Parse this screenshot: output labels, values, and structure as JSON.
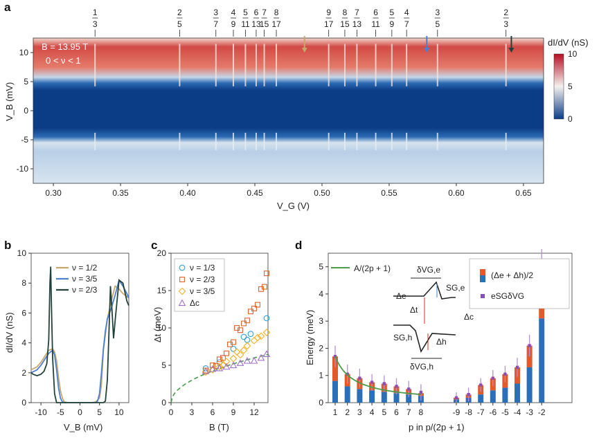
{
  "figure": {
    "panels": [
      "a",
      "b",
      "c",
      "d"
    ],
    "colors": {
      "red": "#b40f20",
      "mid": "#f4f1ee",
      "blue": "#0b3d86",
      "green": "#4a9b4a",
      "gold": "#c8a86a",
      "lightblue": "#4d7fd0",
      "darkgreen": "#22413a",
      "orange": "#e0602a",
      "teal": "#2ca0d8",
      "purple": "#8a4fb0",
      "barblue": "#2a6fb8",
      "barred": "#e25a2a"
    }
  },
  "chart_data": [
    {
      "panel": "a",
      "type": "heatmap",
      "xlabel": "V_G (V)",
      "ylabel": "V_B (mV)",
      "x_ticks": [
        "0.30",
        "0.35",
        "0.40",
        "0.45",
        "0.50",
        "0.55",
        "0.60",
        "0.65"
      ],
      "x_tick_values": [
        0.3,
        0.35,
        0.4,
        0.45,
        0.5,
        0.55,
        0.6,
        0.65
      ],
      "y_ticks": [
        "10",
        "5",
        "0",
        "-5",
        "-10"
      ],
      "y_tick_values": [
        10,
        5,
        0,
        -5,
        -10
      ],
      "xlim": [
        0.285,
        0.665
      ],
      "ylim": [
        -12.5,
        12.5
      ],
      "annotation_field": "B = 13.95 T",
      "annotation_filling": "0 < ν < 1",
      "colorbar": {
        "label": "dI/dV (nS)",
        "ticks": [
          "10",
          "5",
          "0"
        ],
        "tick_values": [
          10,
          5,
          0
        ],
        "range": [
          0,
          10
        ]
      },
      "fractions": [
        {
          "num": "1",
          "den": "3",
          "vg": 0.331
        },
        {
          "num": "2",
          "den": "5",
          "vg": 0.394
        },
        {
          "num": "3",
          "den": "7",
          "vg": 0.421
        },
        {
          "num": "4",
          "den": "9",
          "vg": 0.434
        },
        {
          "num": "5",
          "den": "11",
          "vg": 0.443
        },
        {
          "num": "6",
          "den": "13",
          "vg": 0.451
        },
        {
          "num": "7",
          "den": "15",
          "vg": 0.457
        },
        {
          "num": "8",
          "den": "17",
          "vg": 0.466
        },
        {
          "num": "9",
          "den": "17",
          "vg": 0.505
        },
        {
          "num": "8",
          "den": "15",
          "vg": 0.517
        },
        {
          "num": "7",
          "den": "13",
          "vg": 0.526
        },
        {
          "num": "6",
          "den": "11",
          "vg": 0.54
        },
        {
          "num": "5",
          "den": "9",
          "vg": 0.552
        },
        {
          "num": "4",
          "den": "7",
          "vg": 0.563
        },
        {
          "num": "3",
          "den": "5",
          "vg": 0.586
        },
        {
          "num": "2",
          "den": "3",
          "vg": 0.637
        }
      ],
      "marker_arrows": [
        {
          "color": "#c8a86a",
          "vg": 0.487
        },
        {
          "color": "#4d7fd0",
          "vg": 0.578
        },
        {
          "color": "#22413a",
          "vg": 0.641
        }
      ]
    },
    {
      "panel": "b",
      "type": "line",
      "xlabel": "V_B (mV)",
      "ylabel": "dI/dV (nS)",
      "xlim": [
        -12.5,
        12.5
      ],
      "ylim": [
        0,
        10
      ],
      "x_ticks": [
        "-10",
        "-5",
        "0",
        "5",
        "10"
      ],
      "x_tick_values": [
        -10,
        -5,
        0,
        5,
        10
      ],
      "y_ticks": [
        "0",
        "2",
        "4",
        "6",
        "8",
        "10"
      ],
      "y_tick_values": [
        0,
        2,
        4,
        6,
        8,
        10
      ],
      "series": [
        {
          "name": "ν = 1/2",
          "color": "#c8a86a",
          "x": [
            -12.5,
            -11,
            -10,
            -9,
            -8,
            -7,
            -6.5,
            -6,
            -5.5,
            -5,
            -4.5,
            -4,
            -3,
            -2,
            0,
            2,
            3,
            4,
            5,
            5.5,
            6,
            7,
            8,
            9,
            10,
            11,
            12,
            12.5
          ],
          "y": [
            2.2,
            2.4,
            2.7,
            3.1,
            3.5,
            3.6,
            3.4,
            2.8,
            1.7,
            0.8,
            0.3,
            0.05,
            0,
            0,
            0,
            0,
            0,
            0.05,
            0.3,
            1.2,
            3.5,
            5.6,
            6.8,
            7.8,
            7.6,
            7.3,
            7.1,
            7.0
          ]
        },
        {
          "name": "ν = 3/5",
          "color": "#4d7fd0",
          "x": [
            -12.5,
            -11,
            -10,
            -9,
            -8,
            -7,
            -6.5,
            -6,
            -5.5,
            -5,
            -4.5,
            -4,
            -3,
            0,
            3,
            4,
            4.5,
            5,
            5.5,
            6,
            6.5,
            7,
            8,
            9,
            10,
            11,
            12,
            12.5
          ],
          "y": [
            2.0,
            2.2,
            2.5,
            2.9,
            3.3,
            3.5,
            3.2,
            2.2,
            1.0,
            0.3,
            0.05,
            0,
            0,
            0,
            0,
            0,
            0.1,
            0.6,
            2.0,
            3.6,
            4.8,
            5.6,
            6.3,
            7.2,
            8.2,
            7.8,
            7.3,
            7.0
          ]
        },
        {
          "name": "ν = 2/3",
          "color": "#22413a",
          "x": [
            -12.5,
            -12,
            -11,
            -10,
            -9.2,
            -8.5,
            -8,
            -7.7,
            -7.5,
            -7.3,
            -7,
            -6.5,
            -6,
            -5,
            -4,
            0,
            5,
            6,
            6.5,
            7,
            7.4,
            7.8,
            8.2,
            8.6,
            9,
            10,
            11,
            12,
            12.5
          ],
          "y": [
            2.0,
            1.9,
            1.8,
            1.9,
            2.1,
            2.6,
            4.2,
            8.0,
            9.1,
            6.5,
            3.0,
            0.6,
            0,
            0,
            0,
            0,
            0,
            0,
            0.1,
            1.5,
            4.5,
            7.8,
            6.2,
            4.3,
            5.5,
            8.2,
            8.0,
            6.8,
            6.5
          ]
        }
      ]
    },
    {
      "panel": "c",
      "type": "scatter",
      "xlabel": "B (T)",
      "ylabel": "Δt (meV)",
      "xlim": [
        0,
        14
      ],
      "ylim": [
        0,
        20
      ],
      "x_ticks": [
        "0",
        "3",
        "6",
        "9",
        "12"
      ],
      "x_tick_values": [
        0,
        3,
        6,
        9,
        12
      ],
      "y_ticks": [
        "0",
        "5",
        "10",
        "15",
        "20"
      ],
      "y_tick_values": [
        0,
        5,
        10,
        15,
        20
      ],
      "series": [
        {
          "name": "ν = 1/3",
          "marker": "circle",
          "color": "#2ca0d8",
          "x": [
            5.0,
            7.0,
            9.0,
            10.5,
            11.0,
            11.5,
            13.8
          ],
          "y": [
            4.6,
            5.4,
            7.2,
            8.8,
            8.4,
            9.2,
            11.3
          ]
        },
        {
          "name": "ν = 2/3",
          "marker": "square",
          "color": "#e0602a",
          "x": [
            5.0,
            6.0,
            6.5,
            7.0,
            7.5,
            8.0,
            8.5,
            9.0,
            9.5,
            10.0,
            10.5,
            11.0,
            11.5,
            12.0,
            12.5,
            13.0,
            13.5,
            13.8
          ],
          "y": [
            4.3,
            5.0,
            4.9,
            5.8,
            6.0,
            6.6,
            7.8,
            8.1,
            10.0,
            9.7,
            10.6,
            11.0,
            12.2,
            12.6,
            13.1,
            15.2,
            15.5,
            17.3
          ]
        },
        {
          "name": "ν = 3/5",
          "marker": "diamond",
          "color": "#f0b21e",
          "x": [
            5.0,
            6.0,
            7.0,
            7.5,
            8.0,
            9.0,
            9.5,
            10.0,
            10.5,
            11.0,
            12.0,
            12.5,
            13.0,
            13.8
          ],
          "y": [
            4.1,
            4.4,
            4.8,
            5.0,
            5.5,
            5.9,
            6.8,
            6.4,
            7.0,
            7.6,
            8.3,
            8.7,
            8.9,
            9.4
          ]
        },
        {
          "name": "Δc",
          "marker": "triangle",
          "color": "#a070c8",
          "x": [
            5.0,
            6.0,
            7.0,
            8.0,
            9.0,
            10.0,
            11.0,
            12.0,
            13.0,
            13.8
          ],
          "y": [
            4.2,
            4.5,
            4.6,
            4.8,
            5.0,
            5.3,
            5.6,
            5.6,
            6.0,
            6.5
          ]
        }
      ],
      "fit": {
        "name": "sqrt fit",
        "color": "#4a9b4a",
        "style": "dashed",
        "coef": 1.73
      }
    },
    {
      "panel": "d",
      "type": "bar",
      "xlabel": "p in p/(2p + 1)",
      "ylabel": "Energy (meV)",
      "ylim": [
        0,
        5.5
      ],
      "y_ticks": [
        "0",
        "1",
        "2",
        "3",
        "4",
        "5"
      ],
      "y_tick_values": [
        0,
        1,
        2,
        3,
        4,
        5
      ],
      "categories": [
        "1",
        "2",
        "3",
        "4",
        "5",
        "6",
        "7",
        "8",
        "-9",
        "-8",
        "-7",
        "-6",
        "-5",
        "-4",
        "-3",
        "-2"
      ],
      "series": [
        {
          "name": "(Δe + Δh)/2 (blue part)",
          "color": "#2a6fb8",
          "values": [
            0.8,
            0.6,
            0.5,
            0.45,
            0.4,
            0.35,
            0.3,
            0.25,
            0.12,
            0.18,
            0.3,
            0.45,
            0.55,
            0.7,
            1.3,
            3.1
          ]
        },
        {
          "name": "(Δe + Δh)/2 (red part)",
          "color": "#e25a2a",
          "values": [
            0.9,
            0.45,
            0.4,
            0.3,
            0.3,
            0.25,
            0.2,
            0.1,
            0.06,
            0.12,
            0.35,
            0.45,
            0.5,
            0.6,
            0.8,
            2.05
          ]
        },
        {
          "name": "eS_GδV_G",
          "color": "#8a4fb0",
          "values": [
            1.7,
            1.05,
            0.9,
            0.75,
            0.7,
            0.6,
            0.5,
            0.38,
            0.18,
            0.3,
            0.65,
            0.9,
            1.05,
            1.3,
            2.1,
            5.15
          ]
        }
      ],
      "error": [
        0.4,
        0.35,
        0.35,
        0.3,
        0.3,
        0.3,
        0.3,
        0.3,
        0.2,
        0.25,
        0.25,
        0.3,
        0.3,
        0.35,
        0.4,
        0.5
      ],
      "fit_label": "A/(2p + 1)",
      "legend_bar": "(Δe + Δh)/2",
      "legend_point": "eSGδVG",
      "inset_labels": {
        "dvge": "δVG,e",
        "dvgh": "δVG,h",
        "sge": "SG,e",
        "sgh": "SG,h",
        "de": "Δe",
        "dh": "Δh",
        "dt": "Δt",
        "dc": "Δc"
      }
    }
  ]
}
